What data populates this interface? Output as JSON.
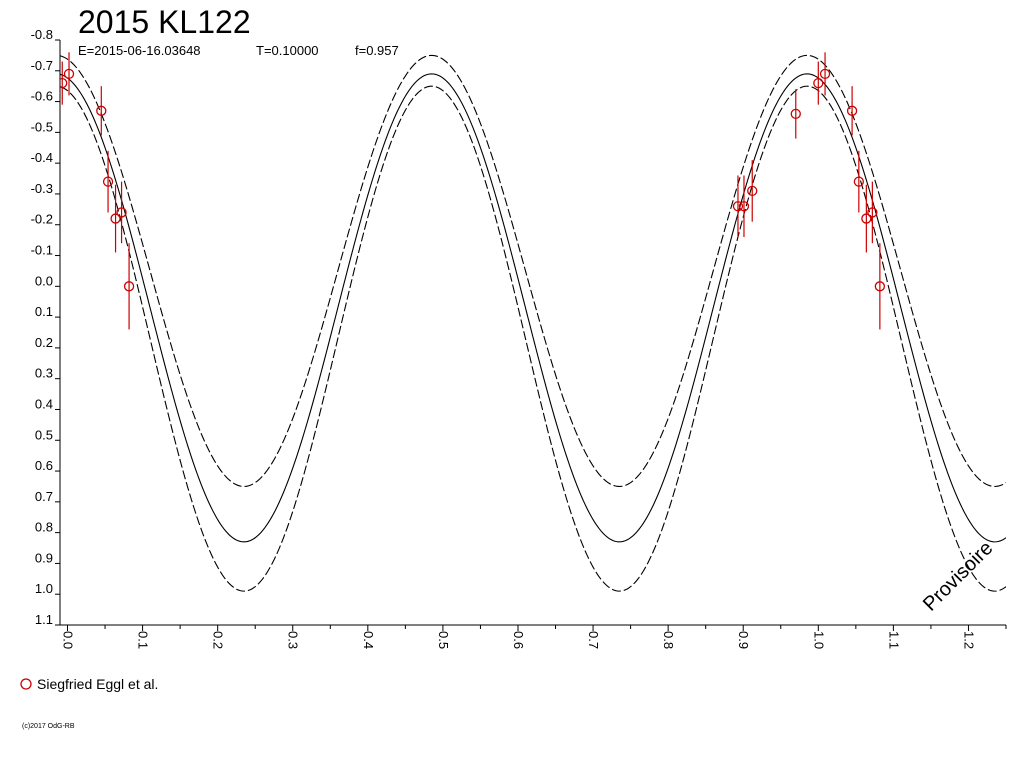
{
  "chart_data": {
    "type": "scatter",
    "title": "2015 KL122",
    "info": {
      "epoch": "E=2015-06-16.03648",
      "period": "T=0.10000",
      "frequency": "f=0.957"
    },
    "xlabel": "",
    "ylabel": "",
    "xlim": [
      -0.01,
      1.25
    ],
    "ylim": [
      -0.8,
      1.1
    ],
    "y_inverted": true,
    "x_ticks": [
      "0.0",
      "0.1",
      "0.2",
      "0.3",
      "0.4",
      "0.5",
      "0.6",
      "0.7",
      "0.8",
      "0.9",
      "1.0",
      "1.1",
      "1.2"
    ],
    "y_ticks": [
      "-0.8",
      "-0.7",
      "-0.6",
      "-0.5",
      "-0.4",
      "-0.3",
      "-0.2",
      "-0.1",
      "0.0",
      "0.1",
      "0.2",
      "0.3",
      "0.4",
      "0.5",
      "0.6",
      "0.7",
      "0.8",
      "0.9",
      "1.0",
      "1.1"
    ],
    "grid": false,
    "model_curves": {
      "central": {
        "style": "solid",
        "mean": 0.07,
        "amplitude": 0.76,
        "peak_phase": 0.485,
        "cycles_per_unit": 2
      },
      "upper_bound": {
        "style": "dashed",
        "mean": -0.05,
        "amplitude": 0.7,
        "peak_phase": 0.485,
        "cycles_per_unit": 2
      },
      "lower_bound": {
        "style": "dashed",
        "mean": 0.17,
        "amplitude": 0.82,
        "peak_phase": 0.485,
        "cycles_per_unit": 2
      }
    },
    "series": [
      {
        "name": "Siegfried Eggl et al.",
        "color": "#cc0000",
        "marker": "open-circle",
        "points": [
          {
            "x": -0.007,
            "y": -0.66,
            "err": 0.07
          },
          {
            "x": 0.002,
            "y": -0.69,
            "err": 0.07
          },
          {
            "x": 0.045,
            "y": -0.57,
            "err": 0.08
          },
          {
            "x": 0.054,
            "y": -0.34,
            "err": 0.1
          },
          {
            "x": 0.064,
            "y": -0.22,
            "err": 0.11
          },
          {
            "x": 0.072,
            "y": -0.24,
            "err": 0.1
          },
          {
            "x": 0.082,
            "y": 0.0,
            "err": 0.14
          },
          {
            "x": 0.893,
            "y": -0.26,
            "err": 0.1
          },
          {
            "x": 0.901,
            "y": -0.26,
            "err": 0.1
          },
          {
            "x": 0.912,
            "y": -0.31,
            "err": 0.1
          },
          {
            "x": 0.97,
            "y": -0.56,
            "err": 0.08
          },
          {
            "x": 1.0,
            "y": -0.66,
            "err": 0.07
          },
          {
            "x": 1.009,
            "y": -0.69,
            "err": 0.07
          },
          {
            "x": 1.045,
            "y": -0.57,
            "err": 0.08
          },
          {
            "x": 1.054,
            "y": -0.34,
            "err": 0.1
          },
          {
            "x": 1.064,
            "y": -0.22,
            "err": 0.11
          },
          {
            "x": 1.072,
            "y": -0.24,
            "err": 0.1
          },
          {
            "x": 1.082,
            "y": 0.0,
            "err": 0.14
          }
        ]
      }
    ],
    "legend": {
      "position": "bottom-left",
      "label": "Siegfried Eggl et al."
    },
    "watermark": "Provisoire",
    "copyright": "(c)2017 OdG-RB"
  }
}
